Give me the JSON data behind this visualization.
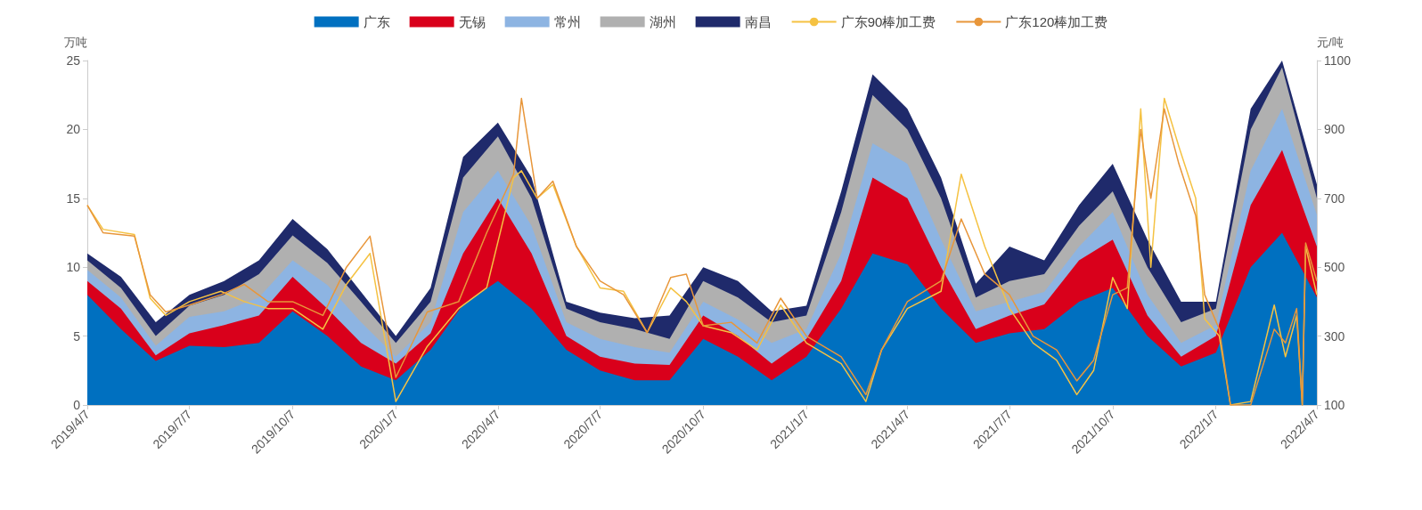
{
  "chart_data": {
    "type": "area",
    "stacked": true,
    "ylabel": "万吨",
    "y2label": "元/吨",
    "legend": "top",
    "ylim": [
      0,
      25
    ],
    "yticks": [
      0,
      5,
      10,
      15,
      20,
      25
    ],
    "y2lim": [
      100,
      1100
    ],
    "y2ticks": [
      100,
      300,
      500,
      700,
      900,
      1100
    ],
    "xlim": [
      "2019-04-07",
      "2022-04-07"
    ],
    "xticks": [
      {
        "value": "2019-04-07",
        "label": "2019/4/7"
      },
      {
        "value": "2019-07-07",
        "label": "2019/7/7"
      },
      {
        "value": "2019-10-07",
        "label": "2019/10/7"
      },
      {
        "value": "2020-01-07",
        "label": "2020/1/7"
      },
      {
        "value": "2020-04-07",
        "label": "2020/4/7"
      },
      {
        "value": "2020-07-07",
        "label": "2020/7/7"
      },
      {
        "value": "2020-10-07",
        "label": "2020/10/7"
      },
      {
        "value": "2021-01-07",
        "label": "2021/1/7"
      },
      {
        "value": "2021-04-07",
        "label": "2021/4/7"
      },
      {
        "value": "2021-07-07",
        "label": "2021/7/7"
      },
      {
        "value": "2021-10-07",
        "label": "2021/10/7"
      },
      {
        "value": "2022-01-07",
        "label": "2022/1/7"
      },
      {
        "value": "2022-04-07",
        "label": "2022/4/7"
      }
    ],
    "x": [
      "2019-04-07",
      "2019-05-07",
      "2019-06-07",
      "2019-07-07",
      "2019-08-07",
      "2019-09-07",
      "2019-10-07",
      "2019-11-07",
      "2019-12-07",
      "2020-01-07",
      "2020-02-07",
      "2020-03-07",
      "2020-04-07",
      "2020-05-07",
      "2020-06-07",
      "2020-07-07",
      "2020-08-07",
      "2020-09-07",
      "2020-10-07",
      "2020-11-07",
      "2020-12-07",
      "2021-01-07",
      "2021-02-07",
      "2021-03-07",
      "2021-04-07",
      "2021-05-07",
      "2021-06-07",
      "2021-07-07",
      "2021-08-07",
      "2021-09-07",
      "2021-10-07",
      "2021-11-07",
      "2021-12-07",
      "2022-01-07",
      "2022-02-07",
      "2022-03-07",
      "2022-04-07"
    ],
    "series": [
      {
        "name": "广东",
        "color": "#0070c0",
        "values": [
          8,
          5.5,
          3.2,
          4.3,
          4.2,
          4.5,
          6.8,
          5,
          2.8,
          1.8,
          4,
          7.3,
          9,
          7,
          4,
          2.5,
          1.8,
          1.8,
          4.8,
          3.5,
          1.8,
          3.5,
          7,
          11,
          10.2,
          7,
          4.5,
          5.2,
          5.5,
          7.5,
          8.5,
          5,
          2.8,
          3.8,
          10,
          12.5,
          7.8
        ]
      },
      {
        "name": "无锡",
        "color": "#d9001b",
        "values": [
          1,
          1.5,
          0.4,
          0.9,
          1.6,
          2,
          2.5,
          2,
          1.7,
          1.2,
          1.2,
          3.7,
          6,
          4,
          1,
          1,
          1.2,
          1.1,
          1.7,
          1.5,
          1.2,
          1.3,
          2,
          5.5,
          4.8,
          3,
          1,
          1.3,
          1.8,
          3,
          3.5,
          1.5,
          0.7,
          1.2,
          4.5,
          6,
          3.7
        ]
      },
      {
        "name": "常州",
        "color": "#8db4e2",
        "values": [
          0.8,
          0.8,
          0.7,
          1.2,
          1,
          1.3,
          1.2,
          1.7,
          1.5,
          0.5,
          0.8,
          3,
          2,
          2,
          1,
          1.3,
          1.2,
          0.9,
          1,
          1.2,
          1.5,
          0.7,
          2,
          2.5,
          2.5,
          2,
          1.3,
          1,
          0.9,
          1,
          2,
          1.5,
          1,
          0.8,
          2.5,
          3,
          2.3
        ]
      },
      {
        "name": "湖州",
        "color": "#b0b0b0",
        "values": [
          0.7,
          0.7,
          0.7,
          0.8,
          1.2,
          1.7,
          1.8,
          1.6,
          1.5,
          1,
          1.5,
          2.5,
          2.5,
          2,
          1,
          1.2,
          1.3,
          1,
          1.5,
          1.6,
          1.5,
          1,
          3,
          3.5,
          2.5,
          3,
          1,
          1.5,
          1.3,
          1.5,
          1.5,
          2,
          1.5,
          1.2,
          3,
          3,
          1.2
        ]
      },
      {
        "name": "南昌",
        "color": "#1f2a6b",
        "values": [
          0.5,
          0.8,
          1,
          0.8,
          1,
          1,
          1.2,
          1,
          0.7,
          0.5,
          1,
          1.5,
          1,
          1.5,
          0.5,
          0.7,
          0.8,
          1.7,
          1,
          1.2,
          0.8,
          0.7,
          1.5,
          1.5,
          1.5,
          1.5,
          1,
          2.5,
          1,
          1.5,
          2,
          2,
          1.5,
          0.5,
          1.5,
          0.5,
          1
        ]
      },
      {
        "name": "广东90棒加工费",
        "type": "line",
        "axis": "y2",
        "color": "#f5c242",
        "x": [
          "2019-04-07",
          "2019-04-21",
          "2019-05-19",
          "2019-06-02",
          "2019-06-16",
          "2019-07-07",
          "2019-08-04",
          "2019-08-25",
          "2019-09-15",
          "2019-10-07",
          "2019-11-03",
          "2019-11-24",
          "2019-12-15",
          "2020-01-07",
          "2020-02-04",
          "2020-03-03",
          "2020-03-28",
          "2020-04-21",
          "2020-04-28",
          "2020-05-12",
          "2020-05-26",
          "2020-06-16",
          "2020-07-07",
          "2020-07-28",
          "2020-08-18",
          "2020-09-08",
          "2020-09-22",
          "2020-10-07",
          "2020-11-01",
          "2020-11-24",
          "2020-12-15",
          "2021-01-07",
          "2021-02-07",
          "2021-03-01",
          "2021-03-15",
          "2021-04-07",
          "2021-05-07",
          "2021-05-25",
          "2021-06-15",
          "2021-07-07",
          "2021-07-28",
          "2021-08-18",
          "2021-09-05",
          "2021-09-20",
          "2021-10-07",
          "2021-10-20",
          "2021-11-01",
          "2021-11-10",
          "2021-11-22",
          "2021-12-05",
          "2021-12-20",
          "2021-12-28",
          "2022-01-10",
          "2022-01-20",
          "2022-02-07",
          "2022-02-28",
          "2022-03-10",
          "2022-03-20",
          "2022-03-25",
          "2022-03-28",
          "2022-04-07"
        ],
        "values": [
          680,
          610,
          595,
          410,
          360,
          400,
          430,
          400,
          380,
          380,
          320,
          450,
          540,
          110,
          270,
          380,
          440,
          760,
          780,
          700,
          740,
          560,
          440,
          430,
          310,
          440,
          400,
          330,
          310,
          260,
          390,
          280,
          220,
          110,
          260,
          380,
          430,
          770,
          560,
          380,
          280,
          230,
          130,
          200,
          470,
          380,
          960,
          500,
          990,
          850,
          700,
          350,
          300,
          100,
          110,
          390,
          240,
          360,
          100,
          560,
          420
        ]
      },
      {
        "name": "广东120棒加工费",
        "type": "line",
        "axis": "y2",
        "color": "#e8963a",
        "x": [
          "2019-04-07",
          "2019-04-21",
          "2019-05-19",
          "2019-06-02",
          "2019-06-16",
          "2019-07-07",
          "2019-08-04",
          "2019-08-25",
          "2019-09-15",
          "2019-10-07",
          "2019-11-03",
          "2019-11-24",
          "2019-12-15",
          "2020-01-07",
          "2020-02-04",
          "2020-03-03",
          "2020-03-28",
          "2020-04-21",
          "2020-04-28",
          "2020-05-12",
          "2020-05-26",
          "2020-06-16",
          "2020-07-07",
          "2020-07-28",
          "2020-08-18",
          "2020-09-08",
          "2020-09-22",
          "2020-10-07",
          "2020-11-01",
          "2020-11-24",
          "2020-12-15",
          "2021-01-07",
          "2021-02-07",
          "2021-03-01",
          "2021-03-15",
          "2021-04-07",
          "2021-05-07",
          "2021-05-25",
          "2021-06-15",
          "2021-07-07",
          "2021-07-28",
          "2021-08-18",
          "2021-09-05",
          "2021-09-20",
          "2021-10-07",
          "2021-10-20",
          "2021-11-01",
          "2021-11-10",
          "2021-11-22",
          "2021-12-05",
          "2021-12-20",
          "2021-12-28",
          "2022-01-10",
          "2022-01-20",
          "2022-02-07",
          "2022-02-28",
          "2022-03-10",
          "2022-03-20",
          "2022-03-25",
          "2022-03-28",
          "2022-04-07"
        ],
        "values": [
          680,
          600,
          590,
          420,
          370,
          390,
          420,
          450,
          400,
          400,
          360,
          500,
          590,
          180,
          370,
          400,
          600,
          770,
          990,
          700,
          750,
          560,
          460,
          420,
          310,
          470,
          480,
          330,
          340,
          280,
          410,
          300,
          240,
          130,
          260,
          400,
          460,
          640,
          480,
          420,
          300,
          260,
          170,
          230,
          420,
          440,
          900,
          700,
          960,
          800,
          650,
          420,
          320,
          100,
          100,
          320,
          280,
          380,
          100,
          570,
          460
        ]
      }
    ]
  }
}
